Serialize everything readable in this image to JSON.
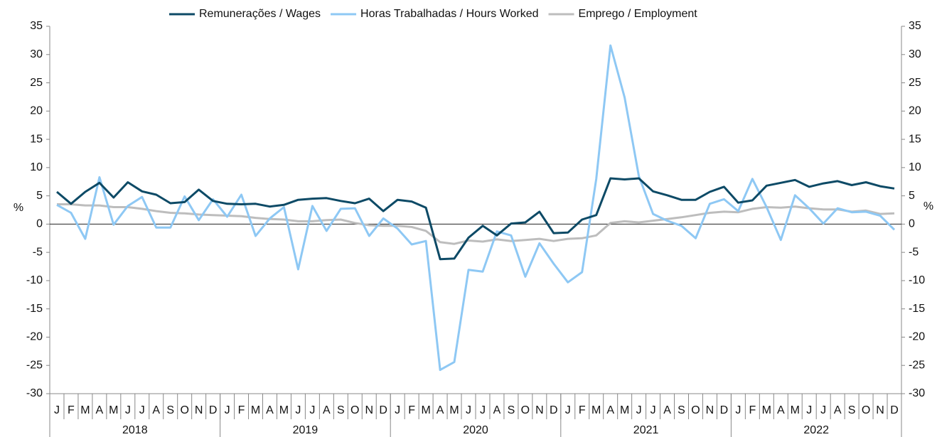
{
  "chart_data": {
    "type": "line",
    "categories": [
      "J",
      "F",
      "M",
      "A",
      "M",
      "J",
      "J",
      "A",
      "S",
      "O",
      "N",
      "D",
      "J",
      "F",
      "M",
      "A",
      "M",
      "J",
      "J",
      "A",
      "S",
      "O",
      "N",
      "D",
      "J",
      "F",
      "M",
      "A",
      "M",
      "J",
      "J",
      "A",
      "S",
      "O",
      "N",
      "D",
      "J",
      "F",
      "M",
      "A",
      "M",
      "J",
      "J",
      "A",
      "S",
      "O",
      "N",
      "D",
      "J",
      "F",
      "M",
      "A",
      "M",
      "J",
      "J",
      "A",
      "S",
      "O",
      "N",
      "D"
    ],
    "year_groups": [
      "2018",
      "2019",
      "2020",
      "2021",
      "2022"
    ],
    "y_label": "%",
    "y2_label": "%",
    "ylim": [
      -30,
      35
    ],
    "yticks": [
      -30,
      -25,
      -20,
      -15,
      -10,
      -5,
      0,
      5,
      10,
      15,
      20,
      25,
      30,
      35
    ],
    "y2lim": [
      -30,
      35
    ],
    "y2ticks": [
      -30,
      -25,
      -20,
      -15,
      -10,
      -5,
      0,
      5,
      10,
      15,
      20,
      25,
      30,
      35
    ],
    "legend": "top",
    "series": [
      {
        "name": "Remunerações / Wages",
        "color": "#0d4a66",
        "values": [
          5.7,
          3.6,
          5.7,
          7.3,
          4.7,
          7.4,
          5.8,
          5.2,
          3.7,
          3.9,
          6.1,
          4.1,
          3.6,
          3.5,
          3.6,
          3.1,
          3.4,
          4.3,
          4.5,
          4.6,
          4.1,
          3.7,
          4.5,
          2.3,
          4.3,
          4.0,
          2.9,
          -6.2,
          -6.1,
          -2.4,
          -0.3,
          -2.0,
          0.1,
          0.3,
          2.2,
          -1.6,
          -1.5,
          0.8,
          1.6,
          8.1,
          7.9,
          8.1,
          5.8,
          5.1,
          4.3,
          4.3,
          5.7,
          6.6,
          3.8,
          4.2,
          6.8,
          7.3,
          7.8,
          6.6,
          7.2,
          7.6,
          6.9,
          7.4,
          6.7,
          6.3
        ]
      },
      {
        "name": "Horas Trabalhadas / Hours Worked",
        "color": "#8ec8f4",
        "values": [
          3.4,
          2.0,
          -2.6,
          8.3,
          -0.1,
          3.2,
          4.8,
          -0.6,
          -0.6,
          4.9,
          0.7,
          4.4,
          1.3,
          5.2,
          -2.1,
          1.0,
          3.0,
          -8.0,
          3.2,
          -1.2,
          2.7,
          2.8,
          -2.1,
          1.0,
          -0.8,
          -3.6,
          -3.0,
          -25.8,
          -24.4,
          -8.1,
          -8.4,
          -1.3,
          -2.0,
          -9.3,
          -3.4,
          -7.0,
          -10.3,
          -8.5,
          8.0,
          31.6,
          22.4,
          8.5,
          1.8,
          0.6,
          -0.3,
          -2.5,
          3.6,
          4.4,
          2.3,
          8.0,
          3.0,
          -2.8,
          5.1,
          2.8,
          0.1,
          2.8,
          2.1,
          2.2,
          1.5,
          -1.0
        ]
      },
      {
        "name": "Emprego / Employment",
        "color": "#bdbdbd",
        "values": [
          3.5,
          3.5,
          3.3,
          3.3,
          3.0,
          3.0,
          2.7,
          2.3,
          2.0,
          1.9,
          1.7,
          1.6,
          1.5,
          1.4,
          1.1,
          0.9,
          0.8,
          0.5,
          0.5,
          0.7,
          0.8,
          0.2,
          -0.2,
          -0.3,
          -0.3,
          -0.5,
          -1.2,
          -3.2,
          -3.5,
          -2.9,
          -3.1,
          -2.7,
          -3.0,
          -2.8,
          -2.6,
          -3.0,
          -2.6,
          -2.5,
          -2.0,
          0.2,
          0.5,
          0.3,
          0.6,
          0.9,
          1.2,
          1.6,
          2.0,
          2.2,
          2.1,
          2.7,
          3.0,
          2.9,
          3.1,
          2.8,
          2.6,
          2.6,
          2.2,
          2.4,
          1.8,
          1.9
        ]
      }
    ]
  }
}
